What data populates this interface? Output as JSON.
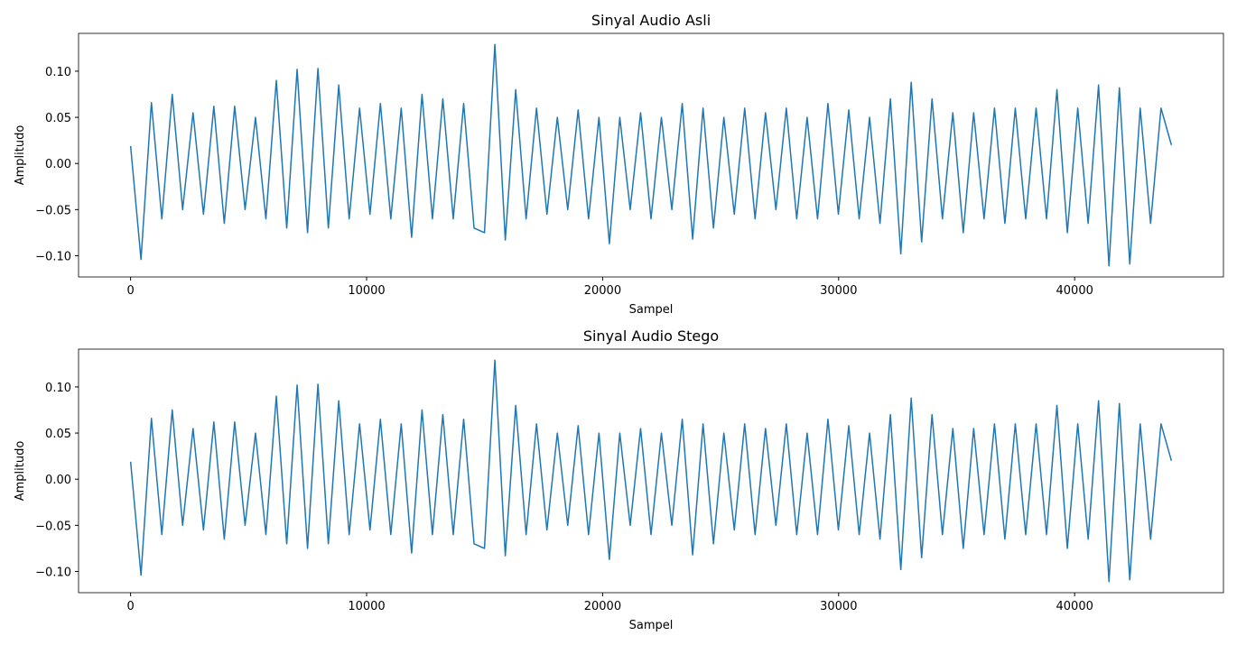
{
  "chart_data": [
    {
      "type": "line",
      "title": "Sinyal Audio Asli",
      "x_label": "Sampel",
      "y_label": "Amplitudo",
      "xlim": [
        -2205,
        46305
      ],
      "ylim": [
        -0.123,
        0.141
      ],
      "xticks": [
        0,
        10000,
        20000,
        30000,
        40000
      ],
      "yticks": [
        {
          "value": -0.1,
          "label": "−0.10"
        },
        {
          "value": -0.05,
          "label": "−0.05"
        },
        {
          "value": 0,
          "label": "0.00"
        },
        {
          "value": 0.05,
          "label": "0.05"
        },
        {
          "value": 0.1,
          "label": "0.10"
        }
      ],
      "series": [
        {
          "name": "Sinyal Audio Asli",
          "color": "#1f77b4",
          "x": [
            0,
            441,
            882,
            1323,
            1764,
            2205,
            2646,
            3087,
            3528,
            3969,
            4410,
            4851,
            5292,
            5733,
            6174,
            6615,
            7056,
            7497,
            7938,
            8379,
            8820,
            9261,
            9702,
            10143,
            10584,
            11025,
            11466,
            11907,
            12348,
            12789,
            13230,
            13671,
            14112,
            14553,
            14994,
            15435,
            15876,
            16317,
            16758,
            17199,
            17640,
            18081,
            18522,
            18963,
            19404,
            19845,
            20286,
            20727,
            21168,
            21609,
            22050,
            22491,
            22932,
            23373,
            23814,
            24255,
            24696,
            25137,
            25578,
            26019,
            26460,
            26901,
            27342,
            27783,
            28224,
            28665,
            29106,
            29547,
            29988,
            30429,
            30870,
            31311,
            31752,
            32193,
            32634,
            33075,
            33516,
            33957,
            34398,
            34839,
            35280,
            35721,
            36162,
            36603,
            37044,
            37485,
            37926,
            38367,
            38808,
            39249,
            39690,
            40131,
            40572,
            41013,
            41454,
            41895,
            42336,
            42777,
            43218,
            43659,
            44100
          ],
          "values": [
            0.019,
            -0.104,
            0.066,
            -0.06,
            0.075,
            -0.05,
            0.055,
            -0.055,
            0.062,
            -0.065,
            0.062,
            -0.05,
            0.05,
            -0.06,
            0.09,
            -0.07,
            0.102,
            -0.075,
            0.103,
            -0.07,
            0.085,
            -0.06,
            0.06,
            -0.055,
            0.065,
            -0.06,
            0.06,
            -0.08,
            0.075,
            -0.06,
            0.07,
            -0.06,
            0.065,
            -0.07,
            -0.075,
            0.129,
            -0.083,
            0.08,
            -0.06,
            0.06,
            -0.055,
            0.05,
            -0.05,
            0.058,
            -0.06,
            0.05,
            -0.087,
            0.05,
            -0.05,
            0.055,
            -0.06,
            0.05,
            -0.05,
            0.065,
            -0.082,
            0.06,
            -0.07,
            0.05,
            -0.055,
            0.06,
            -0.06,
            0.055,
            -0.05,
            0.06,
            -0.06,
            0.05,
            -0.06,
            0.065,
            -0.055,
            0.058,
            -0.06,
            0.05,
            -0.065,
            0.07,
            -0.098,
            0.088,
            -0.085,
            0.07,
            -0.06,
            0.055,
            -0.075,
            0.055,
            -0.06,
            0.06,
            -0.065,
            0.06,
            -0.06,
            0.06,
            -0.06,
            0.08,
            -0.075,
            0.06,
            -0.065,
            0.085,
            -0.111,
            0.082,
            -0.109,
            0.06,
            -0.065,
            0.06,
            0.02
          ]
        }
      ]
    },
    {
      "type": "line",
      "title": "Sinyal Audio Stego",
      "x_label": "Sampel",
      "y_label": "Amplitudo",
      "xlim": [
        -2205,
        46305
      ],
      "ylim": [
        -0.123,
        0.141
      ],
      "xticks": [
        0,
        10000,
        20000,
        30000,
        40000
      ],
      "yticks": [
        {
          "value": -0.1,
          "label": "−0.10"
        },
        {
          "value": -0.05,
          "label": "−0.05"
        },
        {
          "value": 0,
          "label": "0.00"
        },
        {
          "value": 0.05,
          "label": "0.05"
        },
        {
          "value": 0.1,
          "label": "0.10"
        }
      ],
      "series": [
        {
          "name": "Sinyal Audio Stego",
          "color": "#1f77b4",
          "x": [
            0,
            441,
            882,
            1323,
            1764,
            2205,
            2646,
            3087,
            3528,
            3969,
            4410,
            4851,
            5292,
            5733,
            6174,
            6615,
            7056,
            7497,
            7938,
            8379,
            8820,
            9261,
            9702,
            10143,
            10584,
            11025,
            11466,
            11907,
            12348,
            12789,
            13230,
            13671,
            14112,
            14553,
            14994,
            15435,
            15876,
            16317,
            16758,
            17199,
            17640,
            18081,
            18522,
            18963,
            19404,
            19845,
            20286,
            20727,
            21168,
            21609,
            22050,
            22491,
            22932,
            23373,
            23814,
            24255,
            24696,
            25137,
            25578,
            26019,
            26460,
            26901,
            27342,
            27783,
            28224,
            28665,
            29106,
            29547,
            29988,
            30429,
            30870,
            31311,
            31752,
            32193,
            32634,
            33075,
            33516,
            33957,
            34398,
            34839,
            35280,
            35721,
            36162,
            36603,
            37044,
            37485,
            37926,
            38367,
            38808,
            39249,
            39690,
            40131,
            40572,
            41013,
            41454,
            41895,
            42336,
            42777,
            43218,
            43659,
            44100
          ],
          "values": [
            0.019,
            -0.104,
            0.066,
            -0.06,
            0.075,
            -0.05,
            0.055,
            -0.055,
            0.062,
            -0.065,
            0.062,
            -0.05,
            0.05,
            -0.06,
            0.09,
            -0.07,
            0.102,
            -0.075,
            0.103,
            -0.07,
            0.085,
            -0.06,
            0.06,
            -0.055,
            0.065,
            -0.06,
            0.06,
            -0.08,
            0.075,
            -0.06,
            0.07,
            -0.06,
            0.065,
            -0.07,
            -0.075,
            0.129,
            -0.083,
            0.08,
            -0.06,
            0.06,
            -0.055,
            0.05,
            -0.05,
            0.058,
            -0.06,
            0.05,
            -0.087,
            0.05,
            -0.05,
            0.055,
            -0.06,
            0.05,
            -0.05,
            0.065,
            -0.082,
            0.06,
            -0.07,
            0.05,
            -0.055,
            0.06,
            -0.06,
            0.055,
            -0.05,
            0.06,
            -0.06,
            0.05,
            -0.06,
            0.065,
            -0.055,
            0.058,
            -0.06,
            0.05,
            -0.065,
            0.07,
            -0.098,
            0.088,
            -0.085,
            0.07,
            -0.06,
            0.055,
            -0.075,
            0.055,
            -0.06,
            0.06,
            -0.065,
            0.06,
            -0.06,
            0.06,
            -0.06,
            0.08,
            -0.075,
            0.06,
            -0.065,
            0.085,
            -0.111,
            0.082,
            -0.109,
            0.06,
            -0.065,
            0.06,
            0.02
          ]
        }
      ]
    }
  ]
}
